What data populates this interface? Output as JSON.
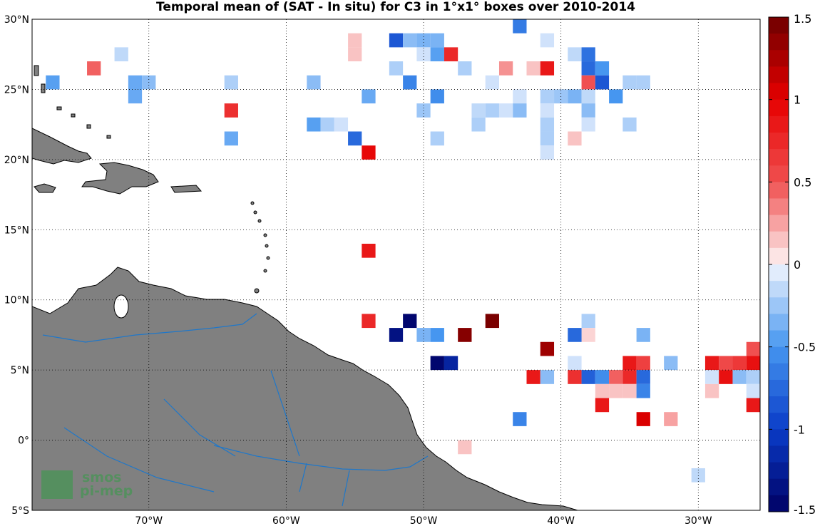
{
  "chart_data": {
    "type": "heatmap",
    "title": "Temporal mean of (SAT - In situ) for C3 in 1°x1° boxes over 2010-2014",
    "x_range": [
      -78.5,
      -25.5
    ],
    "y_range": [
      -5,
      30
    ],
    "x_ticks": [
      {
        "value": -70,
        "label": "70°W"
      },
      {
        "value": -60,
        "label": "60°W"
      },
      {
        "value": -50,
        "label": "50°W"
      },
      {
        "value": -40,
        "label": "40°W"
      },
      {
        "value": -30,
        "label": "30°W"
      }
    ],
    "y_ticks": [
      {
        "value": 30,
        "label": "30°N"
      },
      {
        "value": 25,
        "label": "25°N"
      },
      {
        "value": 20,
        "label": "20°N"
      },
      {
        "value": 15,
        "label": "15°N"
      },
      {
        "value": 10,
        "label": "10°N"
      },
      {
        "value": 5,
        "label": "5°N"
      },
      {
        "value": 0,
        "label": "0°"
      },
      {
        "value": -5,
        "label": "5°S"
      }
    ],
    "colorbar": {
      "range": [
        -1.5,
        1.5
      ],
      "levels": 30,
      "ticks": [
        {
          "value": 1.5,
          "label": "1.5"
        },
        {
          "value": 1,
          "label": "1"
        },
        {
          "value": 0.5,
          "label": "0.5"
        },
        {
          "value": 0,
          "label": "0"
        },
        {
          "value": -0.5,
          "label": "-0.5"
        },
        {
          "value": -1,
          "label": "-1"
        },
        {
          "value": -1.5,
          "label": "-1.5"
        }
      ]
    },
    "grid": true,
    "cells": [
      {
        "lon": -43,
        "lat": 29.5,
        "value": -0.65
      },
      {
        "lon": -52,
        "lat": 28.5,
        "value": -0.85
      },
      {
        "lon": -51,
        "lat": 28.5,
        "value": -0.3
      },
      {
        "lon": -50,
        "lat": 28.5,
        "value": -0.35
      },
      {
        "lon": -49,
        "lat": 28.5,
        "value": -0.35
      },
      {
        "lon": -55,
        "lat": 28.5,
        "value": 0.15
      },
      {
        "lon": -55,
        "lat": 27.5,
        "value": 0.15
      },
      {
        "lon": -41,
        "lat": 28.5,
        "value": -0.1
      },
      {
        "lon": -72,
        "lat": 27.5,
        "value": -0.15
      },
      {
        "lon": -50,
        "lat": 27.5,
        "value": -0.1
      },
      {
        "lon": -49,
        "lat": 27.5,
        "value": -0.45
      },
      {
        "lon": -48,
        "lat": 27.5,
        "value": 0.75
      },
      {
        "lon": -39,
        "lat": 27.5,
        "value": -0.15
      },
      {
        "lon": -38,
        "lat": 27.5,
        "value": -0.7
      },
      {
        "lon": -74,
        "lat": 26.5,
        "value": 0.45
      },
      {
        "lon": -52,
        "lat": 26.5,
        "value": -0.2
      },
      {
        "lon": -47,
        "lat": 26.5,
        "value": -0.2
      },
      {
        "lon": -44,
        "lat": 26.5,
        "value": 0.3
      },
      {
        "lon": -42,
        "lat": 26.5,
        "value": 0.15
      },
      {
        "lon": -41,
        "lat": 26.5,
        "value": 0.85
      },
      {
        "lon": -38,
        "lat": 26.5,
        "value": -0.75
      },
      {
        "lon": -37,
        "lat": 26.5,
        "value": -0.5
      },
      {
        "lon": -77,
        "lat": 25.5,
        "value": -0.45
      },
      {
        "lon": -71,
        "lat": 25.5,
        "value": -0.4
      },
      {
        "lon": -70,
        "lat": 25.5,
        "value": -0.3
      },
      {
        "lon": -64,
        "lat": 25.5,
        "value": -0.2
      },
      {
        "lon": -58,
        "lat": 25.5,
        "value": -0.3
      },
      {
        "lon": -51,
        "lat": 25.5,
        "value": -0.6
      },
      {
        "lon": -45,
        "lat": 25.5,
        "value": -0.1
      },
      {
        "lon": -38,
        "lat": 25.5,
        "value": 0.5
      },
      {
        "lon": -37,
        "lat": 25.5,
        "value": -0.85
      },
      {
        "lon": -35,
        "lat": 25.5,
        "value": -0.2
      },
      {
        "lon": -34,
        "lat": 25.5,
        "value": -0.2
      },
      {
        "lon": -71,
        "lat": 24.5,
        "value": -0.4
      },
      {
        "lon": -54,
        "lat": 24.5,
        "value": -0.4
      },
      {
        "lon": -49,
        "lat": 24.5,
        "value": -0.55
      },
      {
        "lon": -43,
        "lat": 24.5,
        "value": -0.1
      },
      {
        "lon": -41,
        "lat": 24.5,
        "value": -0.2
      },
      {
        "lon": -40,
        "lat": 24.5,
        "value": -0.25
      },
      {
        "lon": -39,
        "lat": 24.5,
        "value": -0.35
      },
      {
        "lon": -38,
        "lat": 24.5,
        "value": -0.15
      },
      {
        "lon": -36,
        "lat": 24.5,
        "value": -0.5
      },
      {
        "lon": -64,
        "lat": 23.5,
        "value": 0.7
      },
      {
        "lon": -50,
        "lat": 23.5,
        "value": -0.25
      },
      {
        "lon": -46,
        "lat": 23.5,
        "value": -0.15
      },
      {
        "lon": -45,
        "lat": 23.5,
        "value": -0.2
      },
      {
        "lon": -44,
        "lat": 23.5,
        "value": -0.1
      },
      {
        "lon": -43,
        "lat": 23.5,
        "value": -0.3
      },
      {
        "lon": -41,
        "lat": 23.5,
        "value": -0.1
      },
      {
        "lon": -38,
        "lat": 23.5,
        "value": -0.3
      },
      {
        "lon": -58,
        "lat": 22.5,
        "value": -0.45
      },
      {
        "lon": -57,
        "lat": 22.5,
        "value": -0.2
      },
      {
        "lon": -56,
        "lat": 22.5,
        "value": -0.1
      },
      {
        "lon": -46,
        "lat": 22.5,
        "value": -0.2
      },
      {
        "lon": -41,
        "lat": 22.5,
        "value": -0.2
      },
      {
        "lon": -38,
        "lat": 22.5,
        "value": -0.1
      },
      {
        "lon": -35,
        "lat": 22.5,
        "value": -0.2
      },
      {
        "lon": -64,
        "lat": 21.5,
        "value": -0.4
      },
      {
        "lon": -55,
        "lat": 21.5,
        "value": -0.75
      },
      {
        "lon": -49,
        "lat": 21.5,
        "value": -0.2
      },
      {
        "lon": -41,
        "lat": 21.5,
        "value": -0.2
      },
      {
        "lon": -39,
        "lat": 21.5,
        "value": 0.15
      },
      {
        "lon": -54,
        "lat": 20.5,
        "value": 0.95
      },
      {
        "lon": -41,
        "lat": 20.5,
        "value": -0.1
      },
      {
        "lon": -54,
        "lat": 13.5,
        "value": 0.85
      },
      {
        "lon": -54,
        "lat": 8.5,
        "value": 0.75
      },
      {
        "lon": -51,
        "lat": 8.5,
        "value": -1.45
      },
      {
        "lon": -45,
        "lat": 8.5,
        "value": 1.45
      },
      {
        "lon": -38,
        "lat": 8.5,
        "value": -0.2
      },
      {
        "lon": -52,
        "lat": 7.5,
        "value": -1.35
      },
      {
        "lon": -50,
        "lat": 7.5,
        "value": -0.35
      },
      {
        "lon": -49,
        "lat": 7.5,
        "value": -0.5
      },
      {
        "lon": -47,
        "lat": 7.5,
        "value": 1.4
      },
      {
        "lon": -38,
        "lat": 7.5,
        "value": 0.1
      },
      {
        "lon": -39,
        "lat": 7.5,
        "value": -0.75
      },
      {
        "lon": -34,
        "lat": 7.5,
        "value": -0.35
      },
      {
        "lon": -41,
        "lat": 6.5,
        "value": 1.3
      },
      {
        "lon": -26,
        "lat": 6.5,
        "value": 0.5
      },
      {
        "lon": -49,
        "lat": 5.5,
        "value": -1.45
      },
      {
        "lon": -48,
        "lat": 5.5,
        "value": -1.2
      },
      {
        "lon": -39,
        "lat": 5.5,
        "value": -0.1
      },
      {
        "lon": -35,
        "lat": 5.5,
        "value": 0.85
      },
      {
        "lon": -34,
        "lat": 5.5,
        "value": 0.6
      },
      {
        "lon": -32,
        "lat": 5.5,
        "value": -0.3
      },
      {
        "lon": -29,
        "lat": 5.5,
        "value": 0.85
      },
      {
        "lon": -28,
        "lat": 5.5,
        "value": 0.55
      },
      {
        "lon": -27,
        "lat": 5.5,
        "value": 0.65
      },
      {
        "lon": -26,
        "lat": 5.5,
        "value": 0.9
      },
      {
        "lon": -42,
        "lat": 4.5,
        "value": 0.85
      },
      {
        "lon": -41,
        "lat": 4.5,
        "value": -0.3
      },
      {
        "lon": -39,
        "lat": 4.5,
        "value": 0.7
      },
      {
        "lon": -38,
        "lat": 4.5,
        "value": -0.8
      },
      {
        "lon": -37,
        "lat": 4.5,
        "value": -0.55
      },
      {
        "lon": -36,
        "lat": 4.5,
        "value": 0.45
      },
      {
        "lon": -35,
        "lat": 4.5,
        "value": 0.75
      },
      {
        "lon": -34,
        "lat": 4.5,
        "value": -0.75
      },
      {
        "lon": -29,
        "lat": 4.5,
        "value": -0.1
      },
      {
        "lon": -28,
        "lat": 4.5,
        "value": 0.9
      },
      {
        "lon": -27,
        "lat": 4.5,
        "value": -0.3
      },
      {
        "lon": -26,
        "lat": 4.5,
        "value": -0.2
      },
      {
        "lon": -37,
        "lat": 3.5,
        "value": 0.15
      },
      {
        "lon": -36,
        "lat": 3.5,
        "value": 0.15
      },
      {
        "lon": -35,
        "lat": 3.5,
        "value": 0.15
      },
      {
        "lon": -34,
        "lat": 3.5,
        "value": -0.6
      },
      {
        "lon": -29,
        "lat": 3.5,
        "value": 0.15
      },
      {
        "lon": -26,
        "lat": 3.5,
        "value": -0.1
      },
      {
        "lon": -37,
        "lat": 2.5,
        "value": 0.85
      },
      {
        "lon": -26,
        "lat": 2.5,
        "value": 0.85
      },
      {
        "lon": -43,
        "lat": 1.5,
        "value": -0.6
      },
      {
        "lon": -34,
        "lat": 1.5,
        "value": 1.05
      },
      {
        "lon": -32,
        "lat": 1.5,
        "value": 0.25
      },
      {
        "lon": -47,
        "lat": -0.5,
        "value": 0.15
      },
      {
        "lon": -30,
        "lat": -2.5,
        "value": -0.15
      }
    ]
  },
  "logo": {
    "line1": "smos",
    "line2": "pi-mep"
  }
}
